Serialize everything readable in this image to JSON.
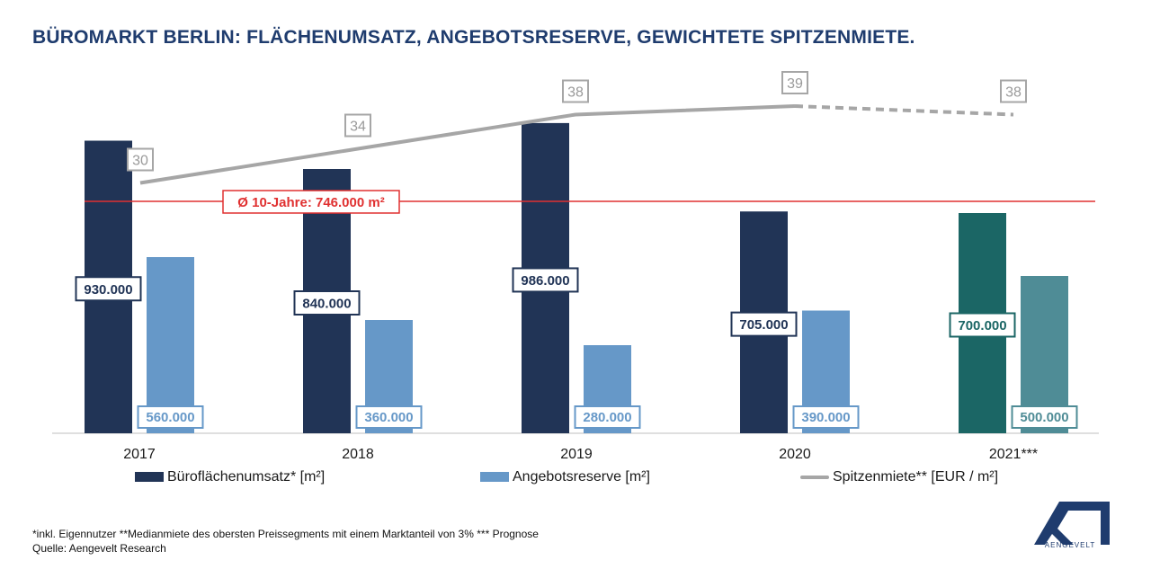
{
  "title": "BÜROMARKT BERLIN: FLÄCHENUMSATZ, ANGEBOTSRESERVE, GEWICHTETE SPITZENMIETE.",
  "colors": {
    "buero": "#213456",
    "angebot": "#6698c8",
    "buero_forecast": "#1b6665",
    "angebot_forecast": "#4f8c96",
    "miete": "#a6a6a6",
    "avg_line": "#e03030",
    "title": "#1f3c6e"
  },
  "chart_data": {
    "type": "bar",
    "categories": [
      "2017",
      "2018",
      "2019",
      "2020",
      "2021***"
    ],
    "series": [
      {
        "name": "Büroflächenumsatz* [m²]",
        "values": [
          930000,
          840000,
          986000,
          705000,
          700000
        ],
        "labels": [
          "930.000",
          "840.000",
          "986.000",
          "705.000",
          "700.000"
        ]
      },
      {
        "name": "Angebotsreserve [m²]",
        "values": [
          560000,
          360000,
          280000,
          390000,
          500000
        ],
        "labels": [
          "560.000",
          "360.000",
          "280.000",
          "390.000",
          "500.000"
        ]
      },
      {
        "name": "Spitzenmiete** [EUR / m²]",
        "type": "line",
        "values": [
          30,
          34,
          38,
          39,
          38
        ],
        "labels": [
          "30",
          "34",
          "38",
          "39",
          "38"
        ],
        "forecast_from_index": 3
      }
    ],
    "forecast_index": 4,
    "reference_line": {
      "value": 746000,
      "label": "Ø 10-Jahre: 746.000 m²"
    },
    "ylim": [
      0,
      1100000
    ]
  },
  "legend": {
    "buero": "Büroflächenumsatz* [m²]",
    "angebot": "Angebotsreserve [m²]",
    "miete": "Spitzenmiete** [EUR / m²]"
  },
  "footnotes": {
    "line1": "*inkl. Eigennutzer **Medianmiete des obersten Preissegments mit einem Marktanteil von 3% *** Prognose",
    "line2": "Quelle: Aengevelt Research"
  },
  "logo": {
    "icon": "aengevelt-logo",
    "text": "AENGEVELT"
  }
}
